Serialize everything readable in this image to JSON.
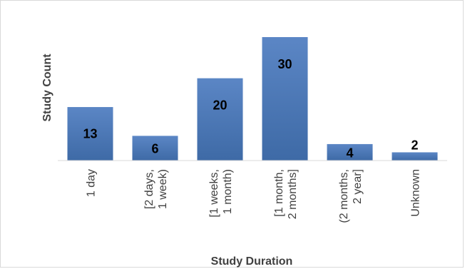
{
  "chart_data": {
    "type": "bar",
    "title": "",
    "xlabel": "Study Duration",
    "ylabel": "Study Count",
    "categories": [
      [
        "1 day"
      ],
      [
        "[2 days,",
        "1 week)"
      ],
      [
        "[1 weeks,",
        "1 month)"
      ],
      [
        "[1 month,",
        "2 months]"
      ],
      [
        "(2 months,",
        "2 year]"
      ],
      [
        "Unknown"
      ]
    ],
    "values": [
      13,
      6,
      20,
      30,
      4,
      2
    ],
    "ylim": [
      0,
      30
    ],
    "grid": false,
    "legend": "none",
    "colors": {
      "bar_top": "#5b86c5",
      "bar_bottom": "#3e6aa6",
      "axis": "#d9d9d9"
    }
  }
}
